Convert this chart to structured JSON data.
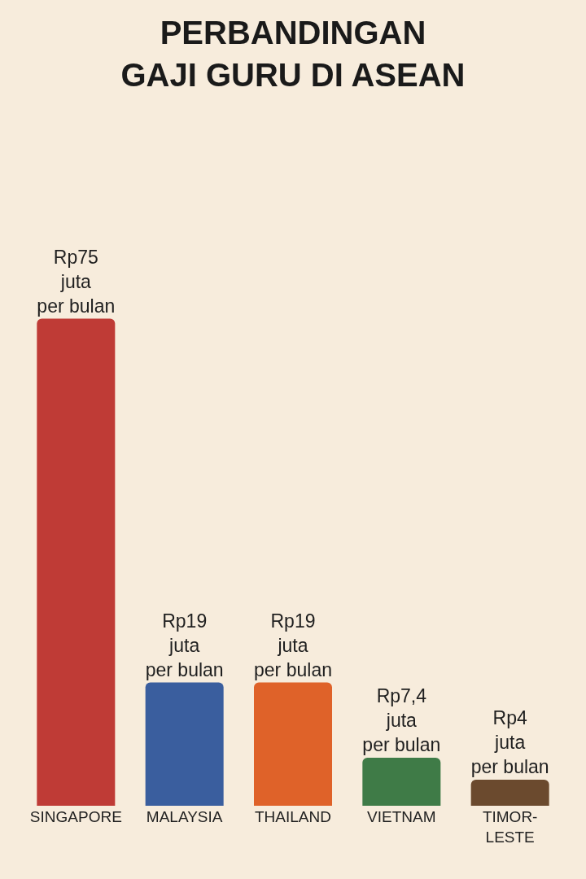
{
  "chart_data": {
    "type": "bar",
    "title": "PERBANDINGAN\nGAJI GURU DI ASEAN",
    "categories": [
      "SINGAPORE",
      "MALAYSIA",
      "THAILAND",
      "VIETNAM",
      "TIMOR-\nLESTE"
    ],
    "values": [
      75,
      19,
      19,
      7.4,
      4
    ],
    "colors": [
      "#bf3b36",
      "#3a5e9e",
      "#df6229",
      "#3f7b47",
      "#6b4a2e"
    ],
    "value_labels": [
      "Rp75\njuta\nper bulan",
      "Rp19\njuta\nper bulan",
      "Rp19\njuta\nper bulan",
      "Rp7,4\njuta\nper bulan",
      "Rp4\njuta\nper bulan"
    ],
    "tick_labels": "x",
    "grid": false
  }
}
